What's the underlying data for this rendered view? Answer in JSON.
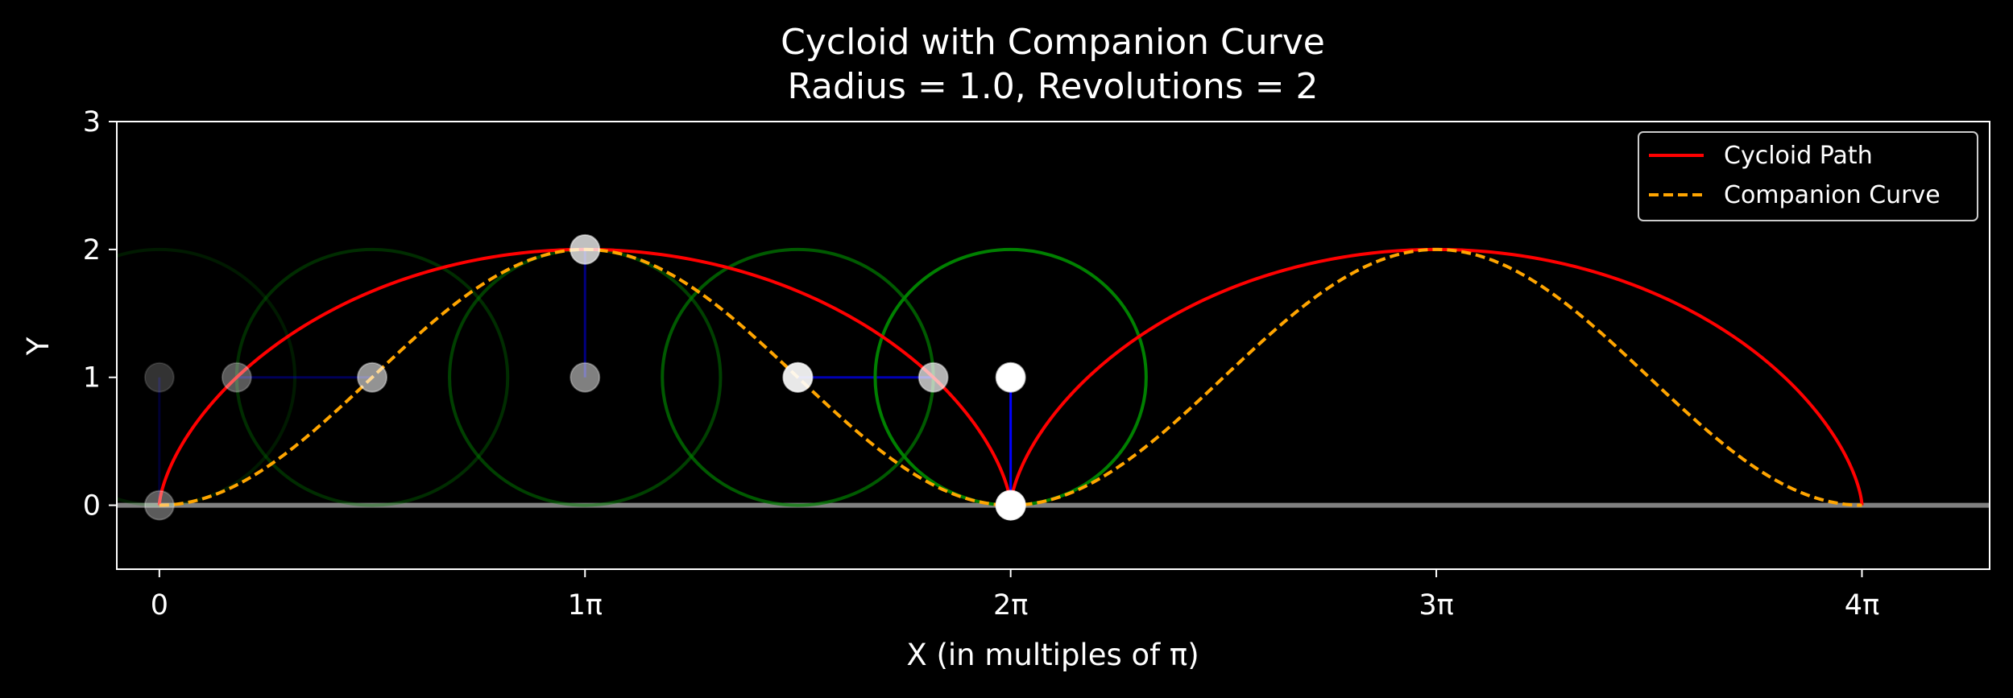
{
  "chart_data": {
    "type": "line",
    "title": "Cycloid with Companion Curve",
    "subtitle": "Radius = 1.0, Revolutions = 2",
    "xlabel": "X (in multiples of π)",
    "ylabel": "Y",
    "radius": 1.0,
    "revolutions": 2,
    "xlim": [
      -0.1,
      4.3
    ],
    "ylim": [
      -0.5,
      3
    ],
    "x_ticks": [
      {
        "value": 0,
        "label": "0"
      },
      {
        "value": 1,
        "label": "1π"
      },
      {
        "value": 2,
        "label": "2π"
      },
      {
        "value": 3,
        "label": "3π"
      },
      {
        "value": 4,
        "label": "4π"
      }
    ],
    "y_ticks": [
      {
        "value": 0,
        "label": "0"
      },
      {
        "value": 1,
        "label": "1"
      },
      {
        "value": 2,
        "label": "2"
      },
      {
        "value": 3,
        "label": "3"
      }
    ],
    "grid": false,
    "legend_position": "top-right",
    "series": [
      {
        "name": "Cycloid Path",
        "color": "#ff0000",
        "style": "solid",
        "formula": "x = r(t - sin t), y = r(1 - cos t)"
      },
      {
        "name": "Companion Curve",
        "color": "#ffa500",
        "style": "dashed",
        "formula": "x = r t, y = r(1 - cos t)"
      }
    ],
    "ground_line": {
      "y": 0,
      "color": "#808080"
    },
    "snapshots": [
      {
        "t_over_pi": 0.0,
        "opacity": 0.2
      },
      {
        "t_over_pi": 0.5,
        "opacity": 0.35
      },
      {
        "t_over_pi": 1.0,
        "opacity": 0.5
      },
      {
        "t_over_pi": 1.5,
        "opacity": 0.7
      },
      {
        "t_over_pi": 2.0,
        "opacity": 1.0
      }
    ],
    "colors": {
      "background": "#000000",
      "rolling_circle": "#008000",
      "radius_line": "#0000ff",
      "point_marker": "#ffffff",
      "axes": "#ffffff"
    }
  }
}
